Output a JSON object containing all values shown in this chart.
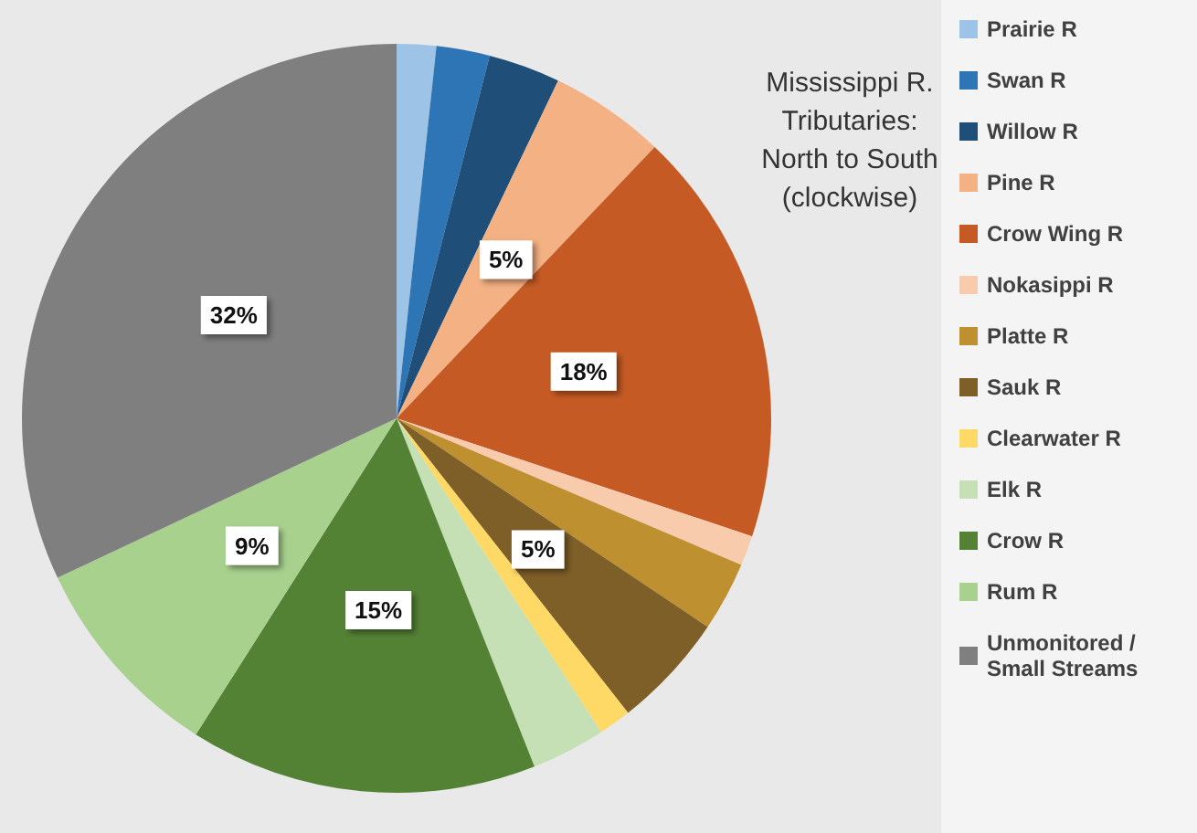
{
  "chart_data": {
    "type": "pie",
    "title": "Mississippi R.\nTributaries:\nNorth to South\n(clockwise)",
    "categories": [
      "Prairie R",
      "Swan R",
      "Willow R",
      "Pine R",
      "Crow Wing R",
      "Nokasippi R",
      "Platte R",
      "Sauk R",
      "Clearwater R",
      "Elk R",
      "Crow R",
      "Rum R",
      "Unmonitored / Small Streams"
    ],
    "values": [
      1.7,
      2.3,
      3.1,
      5,
      18,
      1.3,
      3,
      5,
      1.4,
      3.2,
      15,
      9,
      32
    ],
    "value_labels": [
      null,
      null,
      null,
      "5%",
      "18%",
      null,
      null,
      "5%",
      null,
      null,
      "15%",
      "9%",
      "32%"
    ],
    "colors": [
      "#9dc3e6",
      "#2e75b6",
      "#1f4e79",
      "#f4b183",
      "#c55a24",
      "#f8cbad",
      "#bf9030",
      "#7f5f28",
      "#ffd966",
      "#c5e0b4",
      "#548235",
      "#a9d18e",
      "#7f7f7f"
    ],
    "legend": "right"
  }
}
